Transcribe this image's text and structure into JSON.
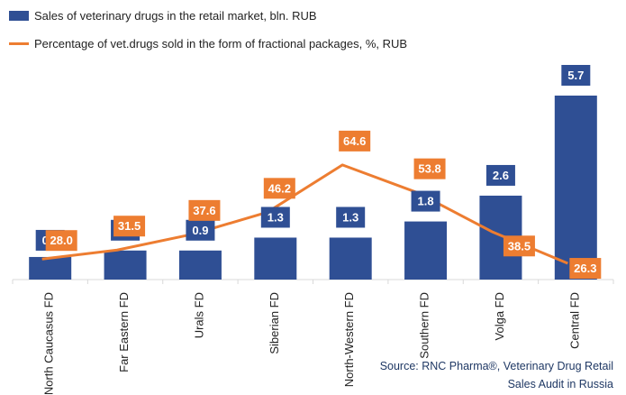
{
  "chart_data": {
    "type": "bar+line",
    "categories": [
      "North Caucasus FD",
      "Far Eastern FD",
      "Urals FD",
      "Siberian FD",
      "North-Western FD",
      "Southern FD",
      "Volga FD",
      "Central FD"
    ],
    "series": [
      {
        "name": "Sales of veterinary drugs in the retail market, bln. RUB",
        "type": "bar",
        "values": [
          0.7,
          0.9,
          0.9,
          1.3,
          1.3,
          1.8,
          2.6,
          5.7
        ],
        "color": "#2F4F94"
      },
      {
        "name": "Percentage of vet.drugs sold in the form of fractional packages, %, RUB",
        "type": "line",
        "values": [
          28.0,
          31.5,
          37.6,
          46.2,
          64.6,
          53.8,
          38.5,
          26.3
        ],
        "color": "#ED7D31"
      }
    ],
    "grid": false,
    "legend_position": "top-left"
  },
  "source": {
    "line1": "Source: RNC Pharma®, Veterinary Drug Retail",
    "line2": "Sales Audit in Russia"
  }
}
